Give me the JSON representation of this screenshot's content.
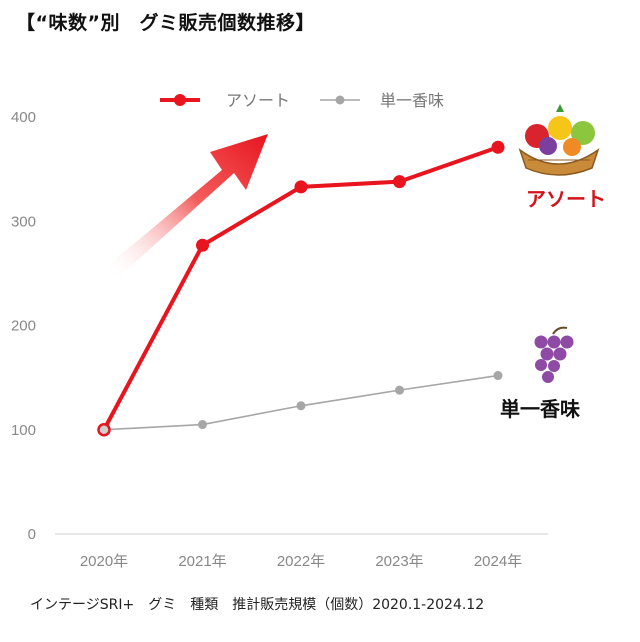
{
  "title": "【“味数”別　グミ販売個数推移】",
  "footer": "インテージSRI+　グミ　種類　推計販売規模（個数）2020.1-2024.12",
  "colors": {
    "assorted": "#e8141e",
    "single": "#a6a6a6",
    "axis": "#d9d9d9"
  },
  "icons": {
    "assorted": "fruit-basket-icon",
    "single": "grapes-icon",
    "trend": "up-arrow-icon"
  },
  "chart_data": {
    "type": "line",
    "categories": [
      "2020年",
      "2021年",
      "2022年",
      "2023年",
      "2024年"
    ],
    "series": [
      {
        "name": "アソート",
        "values": [
          100,
          277,
          333,
          338,
          371
        ]
      },
      {
        "name": "単一香味",
        "values": [
          100,
          105,
          123,
          138,
          152
        ]
      }
    ],
    "yticks": [
      "0",
      "100",
      "200",
      "300",
      "400"
    ],
    "ylim": [
      0,
      400
    ],
    "legend": "top",
    "grid": false,
    "annotations": [
      "アソート",
      "単一香味"
    ]
  }
}
